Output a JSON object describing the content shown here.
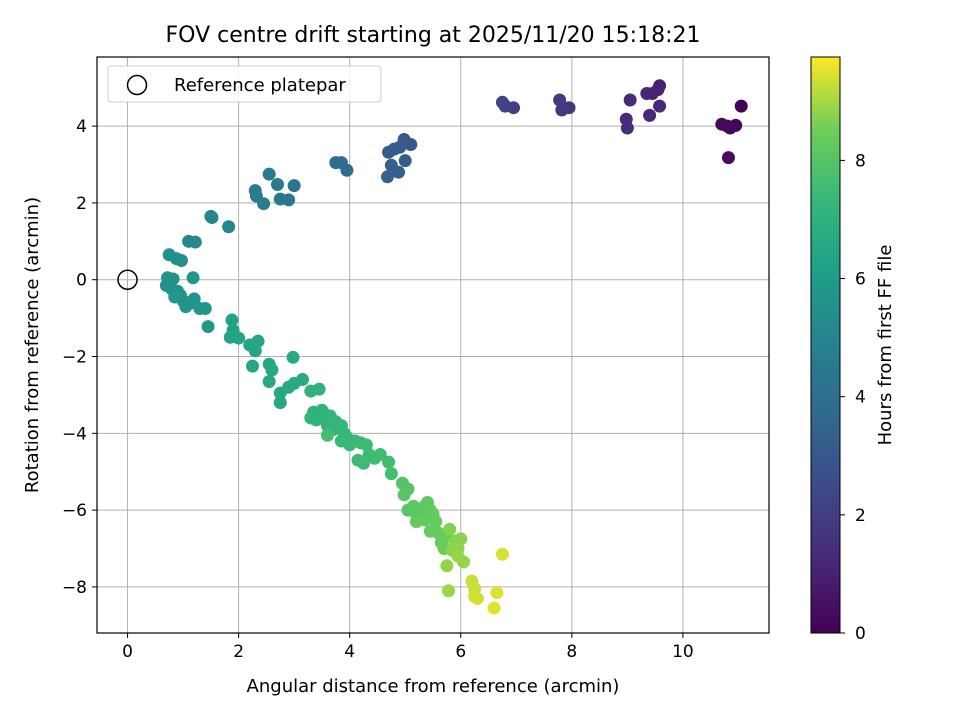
{
  "chart_data": {
    "type": "scatter",
    "title": "FOV centre drift starting at 2025/11/20 15:18:21",
    "xlabel": "Angular distance from reference (arcmin)",
    "ylabel": "Rotation from reference (arcmin)",
    "xlim": [
      -0.55,
      11.55
    ],
    "ylim": [
      -9.2,
      5.8
    ],
    "xticks": [
      0,
      2,
      4,
      6,
      8,
      10
    ],
    "yticks": [
      -8,
      -6,
      -4,
      -2,
      0,
      2,
      4
    ],
    "xtick_labels": [
      "0",
      "2",
      "4",
      "6",
      "8",
      "10"
    ],
    "ytick_labels": [
      "−8",
      "−6",
      "−4",
      "−2",
      "0",
      "2",
      "4"
    ],
    "grid": true,
    "legend": {
      "position": "top-left",
      "entries": [
        "Reference platepar"
      ]
    },
    "reference_point": {
      "x": 0,
      "y": 0,
      "label": "Reference platepar"
    },
    "colorbar": {
      "label": "Hours from first FF file",
      "range": [
        0,
        9.75
      ],
      "ticks": [
        0,
        2,
        4,
        6,
        8
      ],
      "tick_labels": [
        "0",
        "2",
        "4",
        "6",
        "8"
      ],
      "colormap": "viridis"
    },
    "series": [
      {
        "name": "FOV centre",
        "points": [
          [
            11.05,
            4.52,
            0.05
          ],
          [
            10.95,
            4.02,
            0.12
          ],
          [
            10.85,
            3.95,
            0.18
          ],
          [
            10.8,
            4.0,
            0.22
          ],
          [
            10.7,
            4.05,
            0.28
          ],
          [
            10.82,
            3.18,
            0.3
          ],
          [
            9.58,
            5.05,
            1.0
          ],
          [
            9.55,
            4.95,
            1.05
          ],
          [
            9.45,
            4.85,
            1.1
          ],
          [
            9.35,
            4.85,
            1.15
          ],
          [
            9.4,
            4.28,
            1.2
          ],
          [
            9.58,
            4.52,
            1.25
          ],
          [
            9.05,
            4.68,
            1.3
          ],
          [
            8.98,
            4.18,
            1.35
          ],
          [
            9.0,
            3.95,
            1.4
          ],
          [
            7.95,
            4.48,
            1.8
          ],
          [
            7.82,
            4.42,
            1.85
          ],
          [
            7.78,
            4.68,
            1.9
          ],
          [
            6.95,
            4.48,
            2.1
          ],
          [
            6.8,
            4.52,
            2.15
          ],
          [
            6.75,
            4.62,
            2.2
          ],
          [
            5.1,
            3.52,
            3.0
          ],
          [
            4.98,
            3.65,
            3.05
          ],
          [
            4.9,
            3.45,
            3.1
          ],
          [
            4.8,
            3.4,
            3.15
          ],
          [
            4.7,
            3.32,
            3.2
          ],
          [
            5.0,
            3.1,
            3.25
          ],
          [
            4.75,
            2.98,
            3.3
          ],
          [
            4.88,
            2.8,
            3.35
          ],
          [
            4.68,
            2.68,
            3.4
          ],
          [
            3.95,
            2.85,
            3.8
          ],
          [
            3.85,
            3.05,
            3.85
          ],
          [
            3.75,
            3.05,
            3.9
          ],
          [
            3.0,
            2.45,
            4.3
          ],
          [
            2.9,
            2.08,
            4.35
          ],
          [
            2.75,
            2.1,
            4.4
          ],
          [
            2.7,
            2.48,
            4.45
          ],
          [
            2.55,
            2.75,
            4.5
          ],
          [
            2.45,
            1.98,
            4.55
          ],
          [
            2.32,
            2.18,
            4.6
          ],
          [
            2.3,
            2.32,
            4.65
          ],
          [
            1.82,
            1.38,
            5.0
          ],
          [
            1.52,
            1.62,
            5.05
          ],
          [
            1.5,
            1.65,
            5.1
          ],
          [
            1.22,
            0.98,
            5.15
          ],
          [
            1.1,
            1.0,
            5.2
          ],
          [
            0.97,
            0.5,
            5.4
          ],
          [
            0.88,
            0.55,
            5.42
          ],
          [
            0.75,
            0.65,
            5.45
          ],
          [
            0.72,
            0.05,
            5.5
          ],
          [
            0.7,
            -0.15,
            5.52
          ],
          [
            0.8,
            -0.25,
            5.55
          ],
          [
            0.82,
            0.02,
            5.58
          ],
          [
            0.9,
            -0.3,
            5.6
          ],
          [
            0.95,
            -0.4,
            5.62
          ],
          [
            1.0,
            -0.55,
            5.65
          ],
          [
            1.05,
            -0.7,
            5.68
          ],
          [
            1.15,
            -0.6,
            5.7
          ],
          [
            1.2,
            -0.5,
            5.72
          ],
          [
            1.3,
            -0.75,
            5.75
          ],
          [
            1.4,
            -0.75,
            5.78
          ],
          [
            1.45,
            -1.22,
            5.8
          ],
          [
            1.18,
            0.05,
            5.82
          ],
          [
            0.85,
            -0.45,
            5.85
          ],
          [
            1.88,
            -1.05,
            6.3
          ],
          [
            1.9,
            -1.32,
            6.32
          ],
          [
            1.85,
            -1.5,
            6.35
          ],
          [
            2.0,
            -1.52,
            6.38
          ],
          [
            2.2,
            -1.7,
            6.4
          ],
          [
            2.3,
            -1.85,
            6.42
          ],
          [
            2.35,
            -1.6,
            6.45
          ],
          [
            2.25,
            -2.25,
            6.48
          ],
          [
            2.55,
            -2.2,
            6.5
          ],
          [
            2.6,
            -2.35,
            6.52
          ],
          [
            2.55,
            -2.65,
            6.55
          ],
          [
            2.75,
            -2.95,
            6.58
          ],
          [
            2.75,
            -3.2,
            6.6
          ],
          [
            2.9,
            -2.8,
            6.62
          ],
          [
            3.0,
            -2.7,
            6.65
          ],
          [
            3.15,
            -2.6,
            6.68
          ],
          [
            2.98,
            -2.02,
            6.7
          ],
          [
            3.3,
            -2.9,
            7.0
          ],
          [
            3.45,
            -2.85,
            7.02
          ],
          [
            3.35,
            -3.45,
            7.05
          ],
          [
            3.5,
            -3.4,
            7.08
          ],
          [
            3.3,
            -3.6,
            7.1
          ],
          [
            3.4,
            -3.65,
            7.12
          ],
          [
            3.55,
            -3.5,
            7.15
          ],
          [
            3.65,
            -3.55,
            7.18
          ],
          [
            3.6,
            -3.8,
            7.2
          ],
          [
            3.7,
            -3.9,
            7.22
          ],
          [
            3.75,
            -3.7,
            7.25
          ],
          [
            3.85,
            -3.8,
            7.28
          ],
          [
            3.9,
            -4.0,
            7.3
          ],
          [
            3.85,
            -4.2,
            7.32
          ],
          [
            3.95,
            -4.1,
            7.35
          ],
          [
            4.0,
            -4.3,
            7.38
          ],
          [
            4.1,
            -4.2,
            7.4
          ],
          [
            4.2,
            -4.25,
            7.42
          ],
          [
            4.3,
            -4.3,
            7.45
          ],
          [
            4.35,
            -4.55,
            7.48
          ],
          [
            4.15,
            -4.7,
            7.5
          ],
          [
            4.25,
            -4.78,
            7.52
          ],
          [
            4.45,
            -4.65,
            7.55
          ],
          [
            4.55,
            -4.55,
            7.58
          ],
          [
            4.7,
            -4.75,
            7.6
          ],
          [
            4.75,
            -5.05,
            7.62
          ],
          [
            3.6,
            -4.05,
            7.65
          ],
          [
            4.95,
            -5.3,
            8.0
          ],
          [
            5.05,
            -5.45,
            8.02
          ],
          [
            4.98,
            -5.6,
            8.05
          ],
          [
            5.05,
            -6.0,
            8.08
          ],
          [
            5.15,
            -5.9,
            8.1
          ],
          [
            5.2,
            -6.1,
            8.12
          ],
          [
            5.3,
            -6.05,
            8.15
          ],
          [
            5.35,
            -5.9,
            8.18
          ],
          [
            5.4,
            -5.8,
            8.2
          ],
          [
            5.45,
            -6.0,
            8.22
          ],
          [
            5.35,
            -6.25,
            8.25
          ],
          [
            5.5,
            -6.1,
            8.28
          ],
          [
            5.55,
            -6.3,
            8.3
          ],
          [
            5.2,
            -6.3,
            8.32
          ],
          [
            5.45,
            -6.55,
            8.35
          ],
          [
            5.6,
            -6.6,
            8.38
          ],
          [
            5.65,
            -6.85,
            8.4
          ],
          [
            5.7,
            -7.0,
            8.42
          ],
          [
            5.75,
            -6.7,
            8.45
          ],
          [
            5.8,
            -6.5,
            8.7
          ],
          [
            5.9,
            -6.8,
            8.72
          ],
          [
            6.0,
            -6.75,
            8.75
          ],
          [
            5.85,
            -7.05,
            8.78
          ],
          [
            5.95,
            -7.0,
            8.8
          ],
          [
            5.75,
            -7.45,
            8.82
          ],
          [
            6.05,
            -7.35,
            8.85
          ],
          [
            5.95,
            -7.2,
            8.88
          ],
          [
            5.78,
            -8.1,
            8.9
          ],
          [
            6.2,
            -7.85,
            9.3
          ],
          [
            6.25,
            -8.05,
            9.32
          ],
          [
            6.25,
            -8.25,
            9.35
          ],
          [
            6.3,
            -8.3,
            9.38
          ],
          [
            6.75,
            -7.15,
            9.4
          ],
          [
            6.65,
            -8.15,
            9.45
          ],
          [
            6.6,
            -8.55,
            9.5
          ]
        ]
      }
    ]
  }
}
